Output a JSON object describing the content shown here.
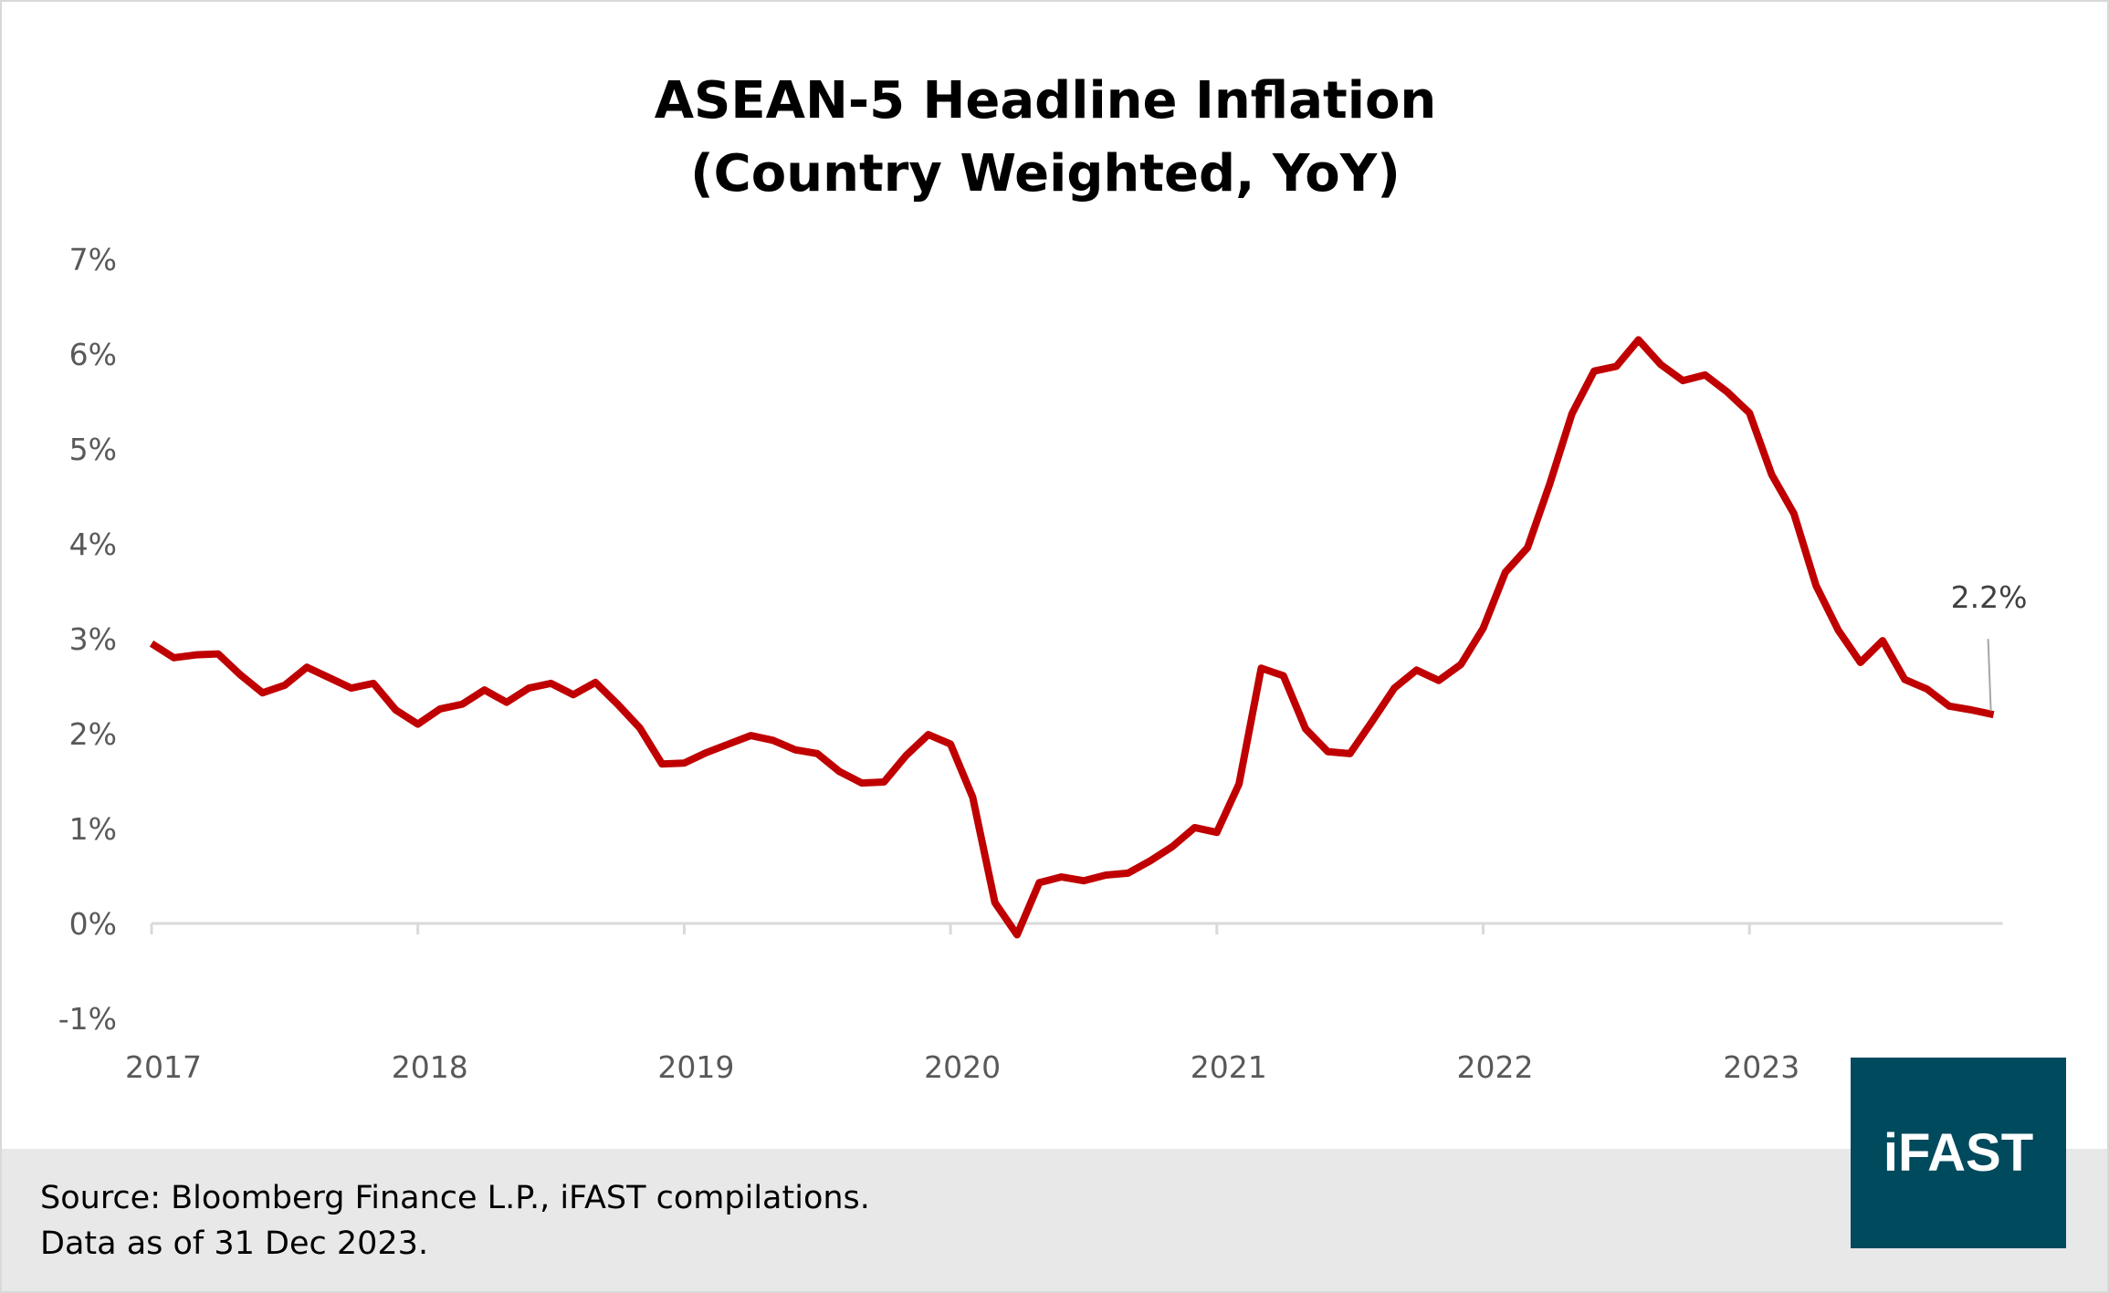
{
  "chart_data": {
    "type": "line",
    "title": "ASEAN-5 Headline Inflation",
    "subtitle": "(Country Weighted, YoY)",
    "xlabel": "",
    "ylabel": "",
    "x_tick_labels": [
      "2017",
      "2018",
      "2019",
      "2020",
      "2021",
      "2022",
      "2023"
    ],
    "y_tick_labels": [
      "-1%",
      "0%",
      "1%",
      "2%",
      "3%",
      "4%",
      "5%",
      "6%",
      "7%"
    ],
    "ylim": [
      -1,
      7
    ],
    "x_range": [
      "Jan 2017",
      "Dec 2023"
    ],
    "frequency": "monthly",
    "grid": false,
    "series": [
      {
        "color": "#c00000",
        "values": [
          2.95,
          2.8,
          2.83,
          2.84,
          2.62,
          2.43,
          2.51,
          2.7,
          2.59,
          2.48,
          2.53,
          2.25,
          2.1,
          2.26,
          2.31,
          2.46,
          2.33,
          2.48,
          2.53,
          2.41,
          2.54,
          2.31,
          2.06,
          1.68,
          1.69,
          1.8,
          1.89,
          1.98,
          1.93,
          1.83,
          1.79,
          1.6,
          1.48,
          1.49,
          1.77,
          1.99,
          1.89,
          1.33,
          0.22,
          -0.12,
          0.43,
          0.49,
          0.45,
          0.51,
          0.53,
          0.66,
          0.81,
          1.01,
          0.96,
          1.47,
          2.69,
          2.61,
          2.05,
          1.81,
          1.79,
          2.13,
          2.48,
          2.67,
          2.56,
          2.73,
          3.11,
          3.7,
          3.96,
          4.63,
          5.37,
          5.82,
          5.87,
          6.15,
          5.89,
          5.72,
          5.78,
          5.6,
          5.38,
          4.73,
          4.32,
          3.56,
          3.09,
          2.75,
          2.98,
          2.57,
          2.47,
          2.29,
          2.25,
          2.2
        ]
      }
    ],
    "annotation": "2.2%"
  },
  "footer": {
    "source": "Source: Bloomberg Finance L.P., iFAST compilations.",
    "date": "Data as of 31 Dec 2023."
  },
  "logo": "iFAST",
  "colors": {
    "line": "#c00000",
    "footer_bg": "#e8e8e8",
    "logo_bg": "#004a5e"
  }
}
